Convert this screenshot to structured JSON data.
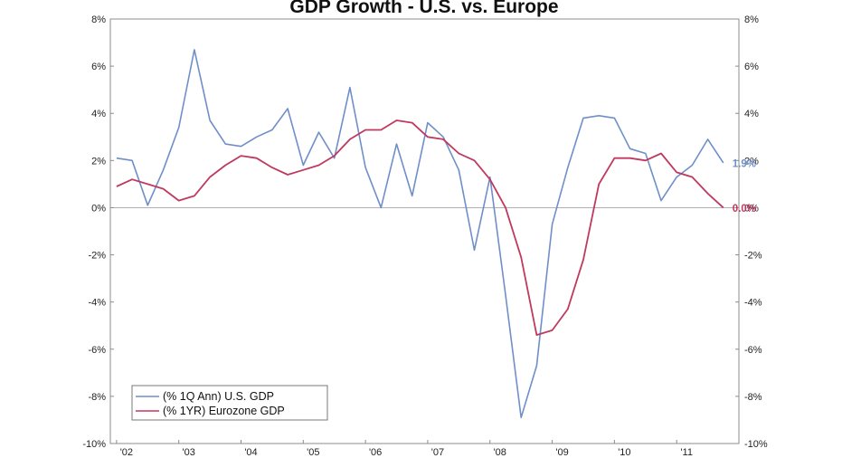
{
  "chart_data": {
    "type": "line",
    "title": "GDP Growth - U.S. vs. Europe",
    "xlabel": "",
    "ylabel": "",
    "ylim": [
      -10,
      8
    ],
    "xlim": [
      2001.9,
      2012.0
    ],
    "yticks": [
      8,
      6,
      4,
      2,
      0,
      -2,
      -4,
      -6,
      -8,
      -10
    ],
    "ytick_labels": [
      "8%",
      "6%",
      "4%",
      "2%",
      "0%",
      "-2%",
      "-4%",
      "-6%",
      "-8%",
      "-10%"
    ],
    "xticks": [
      2002,
      2003,
      2004,
      2005,
      2006,
      2007,
      2008,
      2009,
      2010,
      2011
    ],
    "xtick_labels": [
      "'02",
      "'03",
      "'04",
      "'05",
      "'06",
      "'07",
      "'08",
      "'09",
      "'10",
      "'11"
    ],
    "grid": false,
    "zero_line": true,
    "legend_position": "bottom-left",
    "series": [
      {
        "name": "(% 1Q Ann) U.S. GDP",
        "color": "#6f8fc9",
        "end_label": "1.9%",
        "x": [
          2002.0,
          2002.25,
          2002.5,
          2002.75,
          2003.0,
          2003.25,
          2003.5,
          2003.75,
          2004.0,
          2004.25,
          2004.5,
          2004.75,
          2005.0,
          2005.25,
          2005.5,
          2005.75,
          2006.0,
          2006.25,
          2006.5,
          2006.75,
          2007.0,
          2007.25,
          2007.5,
          2007.75,
          2008.0,
          2008.25,
          2008.5,
          2008.75,
          2009.0,
          2009.25,
          2009.5,
          2009.75,
          2010.0,
          2010.25,
          2010.5,
          2010.75,
          2011.0,
          2011.25,
          2011.5,
          2011.75
        ],
        "values": [
          2.1,
          2.0,
          0.1,
          1.6,
          3.4,
          6.7,
          3.7,
          2.7,
          2.6,
          3.0,
          3.3,
          4.2,
          1.8,
          3.2,
          2.1,
          5.1,
          1.7,
          0.0,
          2.7,
          0.5,
          3.6,
          3.0,
          1.6,
          -1.8,
          1.3,
          -3.7,
          -8.9,
          -6.7,
          -0.7,
          1.7,
          3.8,
          3.9,
          3.8,
          2.5,
          2.3,
          0.3,
          1.3,
          1.8,
          2.9,
          1.9
        ]
      },
      {
        "name": "(% 1YR) Eurozone GDP",
        "color": "#c0395e",
        "end_label": "0.0%",
        "x": [
          2002.0,
          2002.25,
          2002.5,
          2002.75,
          2003.0,
          2003.25,
          2003.5,
          2003.75,
          2004.0,
          2004.25,
          2004.5,
          2004.75,
          2005.0,
          2005.25,
          2005.5,
          2005.75,
          2006.0,
          2006.25,
          2006.5,
          2006.75,
          2007.0,
          2007.25,
          2007.5,
          2007.75,
          2008.0,
          2008.25,
          2008.5,
          2008.75,
          2009.0,
          2009.25,
          2009.5,
          2009.75,
          2010.0,
          2010.25,
          2010.5,
          2010.75,
          2011.0,
          2011.25,
          2011.5,
          2011.75
        ],
        "values": [
          0.9,
          1.2,
          1.0,
          0.8,
          0.3,
          0.5,
          1.3,
          1.8,
          2.2,
          2.1,
          1.7,
          1.4,
          1.6,
          1.8,
          2.2,
          2.9,
          3.3,
          3.3,
          3.7,
          3.6,
          3.0,
          2.9,
          2.3,
          2.0,
          1.2,
          0.0,
          -2.1,
          -5.4,
          -5.2,
          -4.3,
          -2.2,
          1.0,
          2.1,
          2.1,
          2.0,
          2.3,
          1.5,
          1.3,
          0.6,
          0.0
        ]
      }
    ]
  }
}
